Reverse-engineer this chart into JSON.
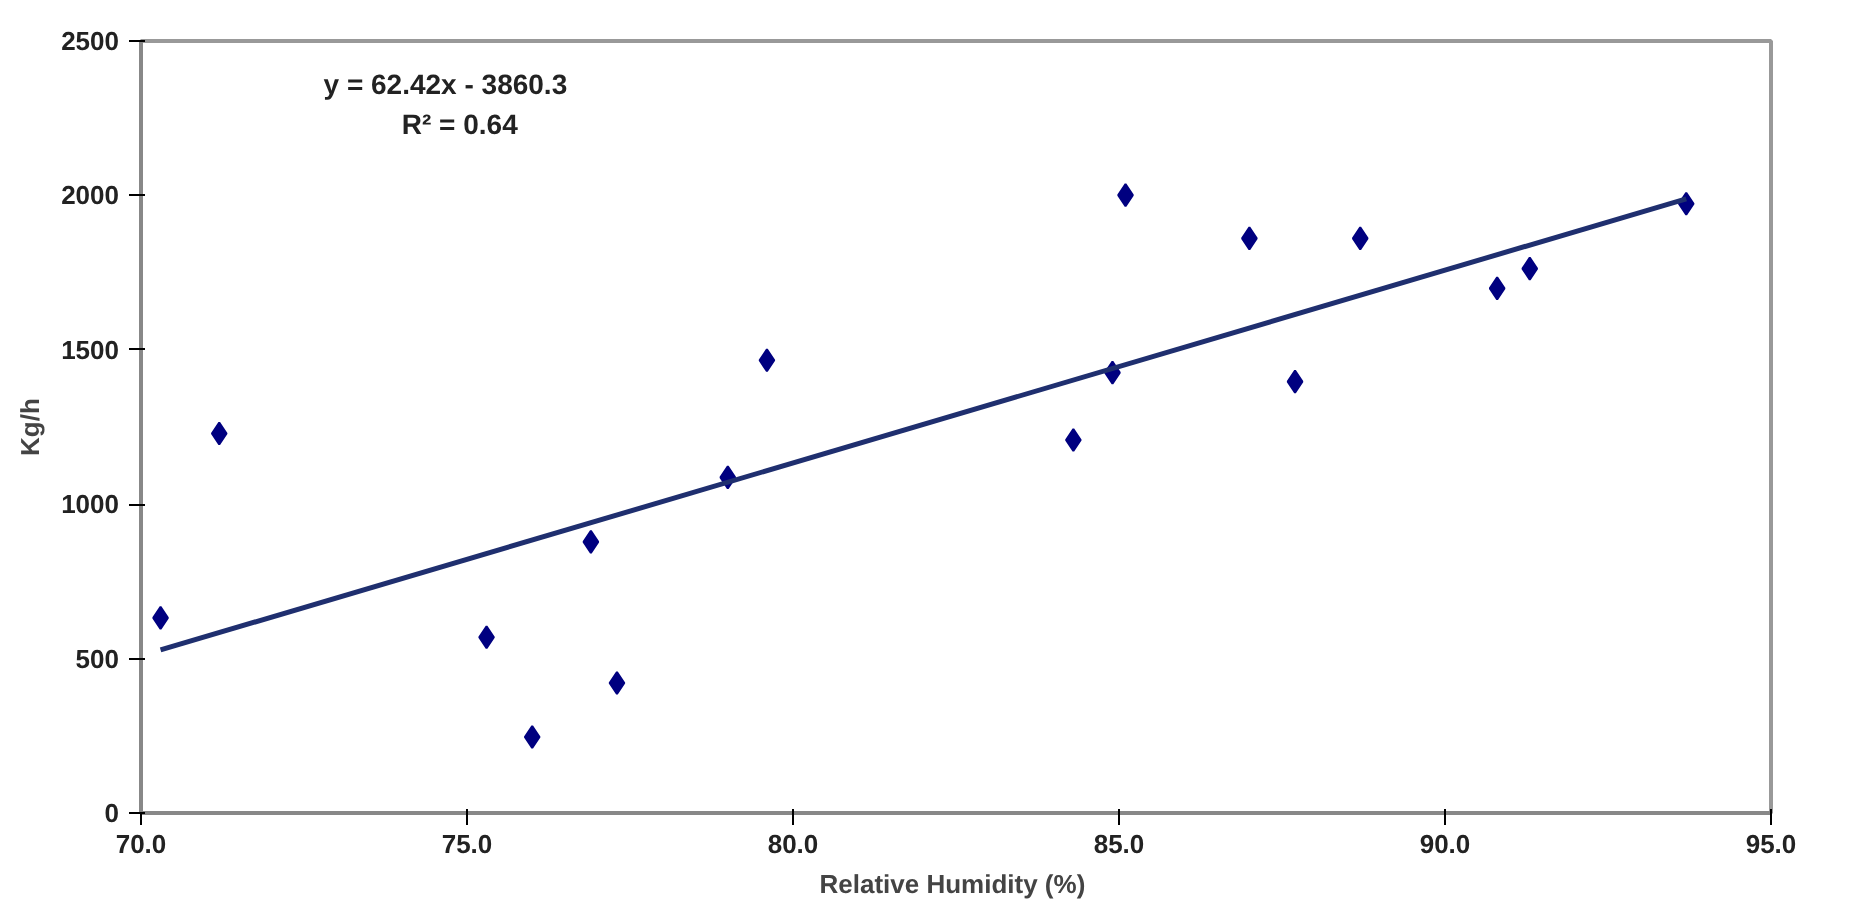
{
  "chart_data": {
    "type": "scatter",
    "xlabel": "Relative Humidity  (%)",
    "ylabel": "Kg/h",
    "xlim": [
      70,
      95
    ],
    "xticks": [
      {
        "value": 70,
        "label": "70.0"
      },
      {
        "value": 75,
        "label": "75.0"
      },
      {
        "value": 80,
        "label": "80.0"
      },
      {
        "value": 85,
        "label": "85.0"
      },
      {
        "value": 90,
        "label": "90.0"
      },
      {
        "value": 95,
        "label": "95.0"
      }
    ],
    "ylim": [
      0,
      2500
    ],
    "yticks": [
      0,
      500,
      1000,
      1500,
      2000,
      2500
    ],
    "grid": false,
    "marker": "diamond",
    "annotations": [
      "y = 62.42x - 3860.3",
      "R² = 0.64"
    ],
    "series": [
      {
        "color": "#000080",
        "x": [
          70.3,
          71.2,
          75.3,
          76.0,
          76.9,
          77.3,
          79.0,
          79.6,
          84.3,
          84.9,
          85.1,
          87.0,
          87.7,
          88.7,
          90.8,
          91.3,
          93.7
        ],
        "values": [
          632,
          1229,
          569,
          246,
          878,
          421,
          1087,
          1466,
          1208,
          1426,
          2001,
          1861,
          1397,
          1861,
          1699,
          1763,
          1973
        ]
      },
      {
        "type": "line",
        "marker": "none",
        "color": "#1f2f6f",
        "x": [
          70.3,
          93.7
        ],
        "values": [
          528,
          1989
        ]
      }
    ]
  }
}
